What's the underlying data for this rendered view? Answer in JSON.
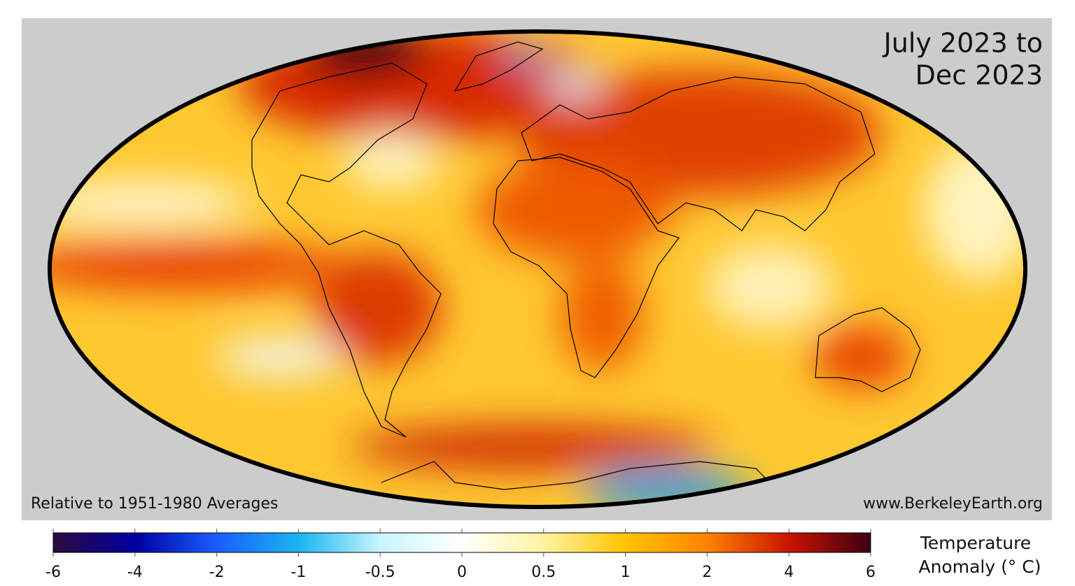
{
  "map": {
    "title": [
      "July 2023 to",
      "Dec 2023"
    ],
    "baseline_note": "Relative to 1951-1980 Averages",
    "source": "www.BerkeleyEarth.org"
  },
  "colorbar": {
    "label": [
      "Temperature",
      "Anomaly (° C)"
    ],
    "ticks": [
      -6,
      -4,
      -2,
      -1,
      -0.5,
      0,
      0.5,
      1,
      2,
      4,
      6
    ],
    "colors": [
      "#2d0a3e",
      "#0000a0",
      "#1a5cff",
      "#19b4f0",
      "#c8f5ff",
      "#ffffff",
      "#fff3a0",
      "#ffc400",
      "#ff8200",
      "#c81400",
      "#3c0010"
    ]
  }
}
